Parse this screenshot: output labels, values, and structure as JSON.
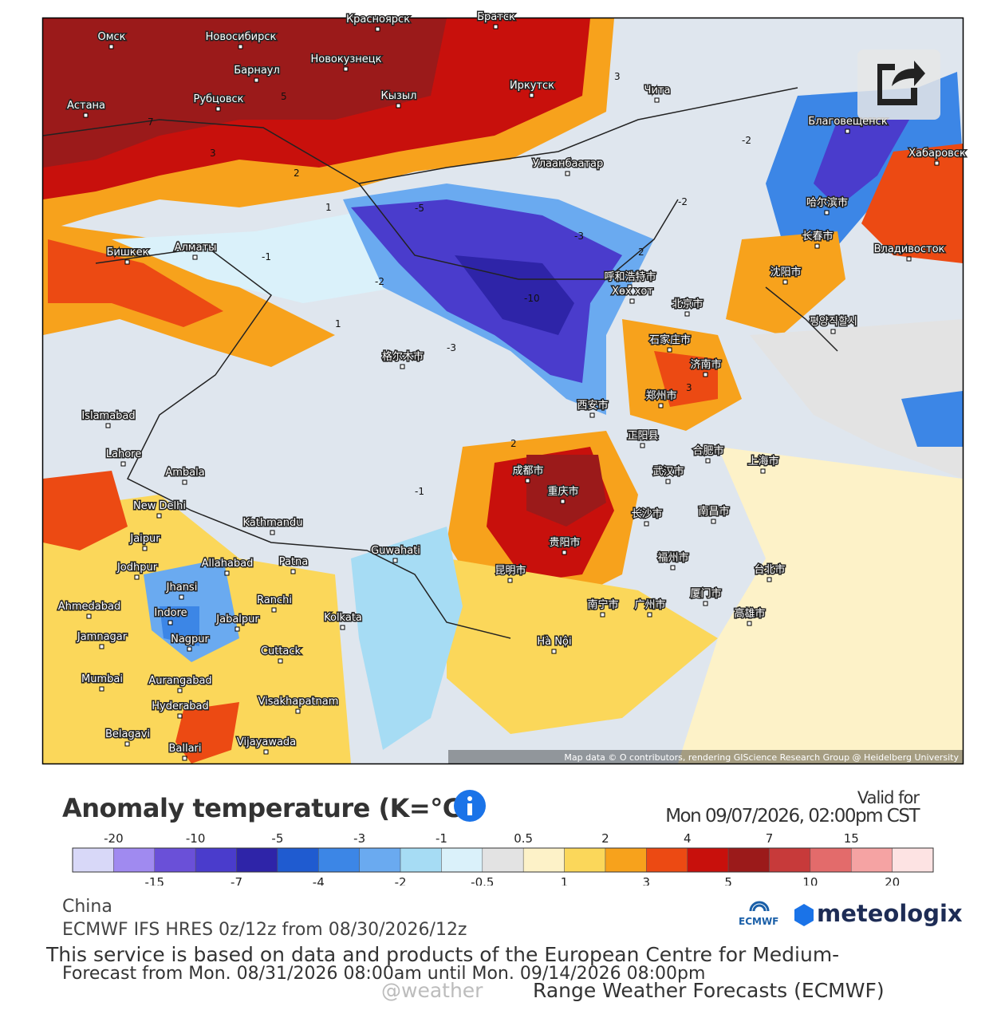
{
  "map": {
    "attribution": "Map data © O contributors, rendering GIScience Research Group @ Heidelberg University",
    "cities": [
      "Омск",
      "Новосибирск",
      "Красноярск",
      "Братск",
      "Новокузнецк",
      "Барнаул",
      "Иркутск",
      "Астана",
      "Рубцовск",
      "Кызыл",
      "Чита",
      "Благовещенск",
      "Хабаровск",
      "Улаанбаатар",
      "哈尔滨市",
      "长春市",
      "Владивосток",
      "Бишкек",
      "Алматы",
      "呼和浩特市",
      "Хөх хот",
      "沈阳市",
      "北京市",
      "평양직할시",
      "石家庄市",
      "济南市",
      "格尔木市",
      "Islamabad",
      "西安市",
      "郑州市",
      "正阳县",
      "Lahore",
      "Ambala",
      "成都市",
      "重庆市",
      "合肥市",
      "武汉市",
      "上海市",
      "New Delhi",
      "Kathmandu",
      "长沙市",
      "Jaipur",
      "Guwahati",
      "贵阳市",
      "南昌市",
      "Jodhpur",
      "Allahabad",
      "Patna",
      "昆明市",
      "福州市",
      "台北市",
      "Jhansi",
      "Ahmedabad",
      "Indore",
      "Jabalpur",
      "Ranchi",
      "Kolkata",
      "南宁市",
      "广州市",
      "厦门市",
      "高雄市",
      "Jamnagar",
      "Nagpur",
      "Cuttack",
      "Hà Nội",
      "Mumbai",
      "Aurangabad",
      "Hyderabad",
      "Visakhapatnam",
      "Belagavi",
      "Ballari",
      "Vijayawada"
    ],
    "contour_labels": [
      7,
      5,
      3,
      2,
      1,
      -1,
      -2,
      -3,
      -5,
      -10,
      -3,
      -2,
      2,
      3,
      -1,
      1,
      2,
      -2,
      3
    ]
  },
  "legend": {
    "title": "Anomaly temperature (K=°C)",
    "valid_label": "Valid for",
    "valid_time": "Mon 09/07/2026, 02:00pm CST",
    "thresholds": [
      -20,
      -15,
      -10,
      -7,
      -5,
      -4,
      -3,
      -2,
      -1,
      -0.5,
      0.5,
      1,
      2,
      3,
      4,
      5,
      7,
      10,
      15,
      20
    ],
    "colors": [
      "#d8d8f8",
      "#a08af0",
      "#6a50d8",
      "#4a3ccc",
      "#2e24a8",
      "#1f5bd0",
      "#3c86e6",
      "#6aaaf0",
      "#a6dcf4",
      "#daf1fa",
      "#e3e3e3",
      "#fdf2c8",
      "#fbd75a",
      "#f7a21c",
      "#ec4a13",
      "#c8100c",
      "#9b1a1a",
      "#c73a3a",
      "#e36b6b",
      "#f5a3a3",
      "#fde3e3"
    ]
  },
  "footer": {
    "region": "China",
    "model": "ECMWF IFS HRES 0z/12z from 08/30/2026/12z",
    "service_note": "This service is based on data and products of the European Centre for Medium-",
    "forecast_range": "Forecast from Mon. 08/31/2026 08:00am until Mon. 09/14/2026 08:00pm",
    "service_note_2": "Range Weather Forecasts (ECMWF)",
    "watermark": "@weather",
    "logo_ecmwf": "ECMWF",
    "logo_meteologix": "meteologix"
  }
}
